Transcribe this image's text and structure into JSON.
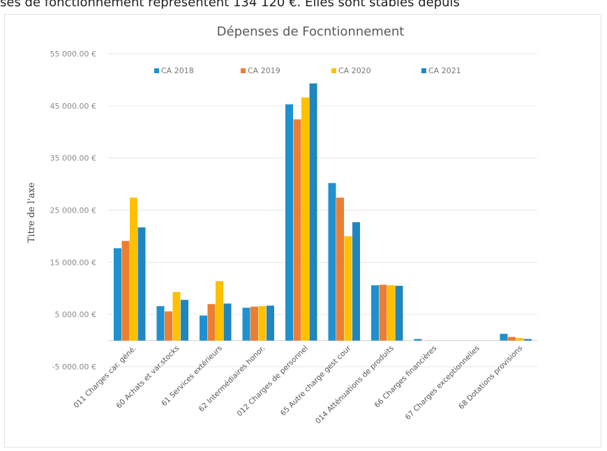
{
  "header": {
    "text": "ses de fonctionnement représentent 134 120 €. Elles sont stables depuis"
  },
  "chart_data": {
    "type": "bar",
    "title": "Dépenses de Focntionnement",
    "ylabel": "Titre de l'axe",
    "xlabel": "",
    "ylim": [
      -5000,
      55000
    ],
    "yticks": [
      -5000,
      5000,
      15000,
      25000,
      35000,
      45000,
      55000
    ],
    "ytick_labels": [
      "-5 000.00 €",
      "5 000.00 €",
      "15 000.00 €",
      "25 000.00 €",
      "35 000.00 €",
      "45 000.00 €",
      "55 000.00 €"
    ],
    "grid": true,
    "legend_position": "top",
    "categories": [
      "011 Charges car. géné.",
      "60 Achats et var.stocks",
      "61 Services extérieurs",
      "62 Intermédiaires honor.",
      "012 Charges de personnel",
      "65 Autre charge gest cour",
      "014 Atténuations de produits",
      "66 Charges financières",
      "67 Charges exceptionnelles",
      "68 Dotations provisions"
    ],
    "series": [
      {
        "name": "CA 2018",
        "color": "#1f91cf",
        "values": [
          17700,
          6600,
          4800,
          6300,
          45300,
          30200,
          10600,
          300,
          0,
          1300
        ]
      },
      {
        "name": "CA 2019",
        "color": "#ed7d31",
        "values": [
          19100,
          5600,
          7000,
          6500,
          42400,
          27400,
          10700,
          0,
          0,
          700
        ]
      },
      {
        "name": "CA 2020",
        "color": "#ffc000",
        "values": [
          27400,
          9300,
          11400,
          6600,
          46600,
          20000,
          10600,
          0,
          0,
          500
        ]
      },
      {
        "name": "CA 2021",
        "color": "#1f86c0",
        "values": [
          21700,
          7800,
          7100,
          6700,
          49300,
          22700,
          10500,
          0,
          0,
          300
        ]
      }
    ]
  }
}
